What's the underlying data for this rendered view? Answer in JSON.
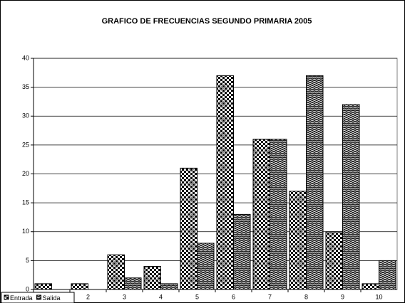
{
  "chart_data": {
    "type": "bar",
    "title": "GRAFICO DE FRECUENCIAS SEGUNDO PRIMARIA 2005",
    "categories": [
      null,
      "2",
      "3",
      "4",
      "5",
      "6",
      "7",
      "8",
      "9",
      "10"
    ],
    "series": [
      {
        "name": "Entrada",
        "color": "#000000",
        "pattern": "checker",
        "values": [
          1,
          1,
          6,
          4,
          21,
          37,
          26,
          17,
          10,
          1
        ]
      },
      {
        "name": "Salida",
        "color": "#000000",
        "pattern": "zigzag",
        "values": [
          0,
          0,
          2,
          1,
          8,
          13,
          26,
          37,
          32,
          5
        ]
      }
    ],
    "ylim": [
      0,
      40
    ],
    "yticks": [
      0,
      5,
      10,
      15,
      20,
      25,
      30,
      35,
      40
    ],
    "grid": true,
    "legend": "bottom-left"
  }
}
